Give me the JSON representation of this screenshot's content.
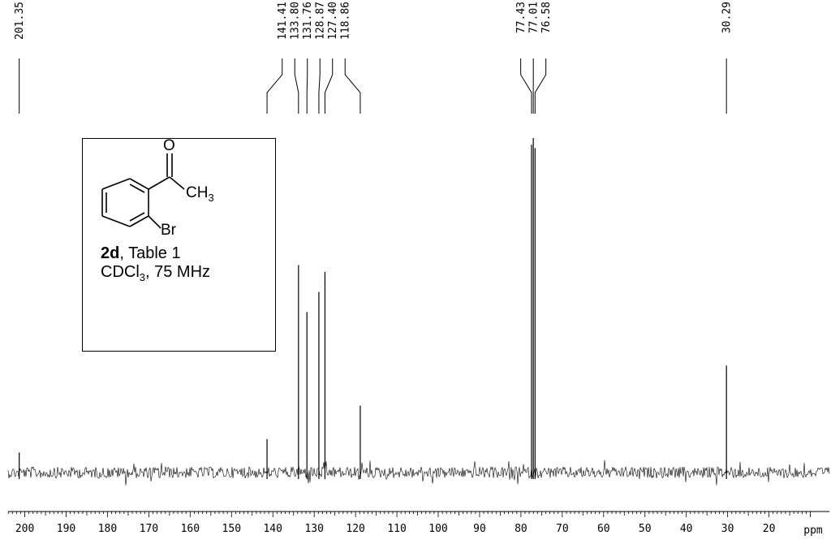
{
  "chart_data": {
    "type": "line",
    "title": "",
    "xlabel": "ppm",
    "ylabel": "",
    "x_reversed": true,
    "xlim": [
      206,
      5
    ],
    "x_ticks": [
      200,
      190,
      180,
      170,
      160,
      150,
      140,
      130,
      120,
      110,
      100,
      90,
      80,
      70,
      60,
      50,
      40,
      30,
      20
    ],
    "x_tick_labels": [
      "200",
      "190",
      "180",
      "170",
      "160",
      "150",
      "140",
      "130",
      "120",
      "110",
      "100",
      "90",
      "80",
      "70",
      "60",
      "50",
      "40",
      "30",
      "20"
    ],
    "peaks": [
      {
        "shift": 201.35,
        "label": "201.35",
        "intensity": 0.06
      },
      {
        "shift": 141.41,
        "label": "141.41",
        "intensity": 0.1
      },
      {
        "shift": 133.8,
        "label": "133.80",
        "intensity": 0.62
      },
      {
        "shift": 131.76,
        "label": "131.76",
        "intensity": 0.48
      },
      {
        "shift": 128.87,
        "label": "128.87",
        "intensity": 0.54
      },
      {
        "shift": 127.4,
        "label": "127.40",
        "intensity": 0.6
      },
      {
        "shift": 118.86,
        "label": "118.86",
        "intensity": 0.2
      },
      {
        "shift": 77.43,
        "label": "77.43",
        "intensity": 0.98
      },
      {
        "shift": 77.01,
        "label": "77.01",
        "intensity": 1.0
      },
      {
        "shift": 76.58,
        "label": "76.58",
        "intensity": 0.97
      },
      {
        "shift": 30.29,
        "label": "30.29",
        "intensity": 0.32
      }
    ]
  },
  "inset": {
    "compound_id": "2d",
    "compound_rest": ", Table 1",
    "solvent_prefix": "CDCl",
    "solvent_sub": "3",
    "solvent_rest": ", 75 MHz",
    "atom_O": "O",
    "atom_CH": "CH",
    "atom_CH_sub": "3",
    "atom_Br": "Br"
  }
}
